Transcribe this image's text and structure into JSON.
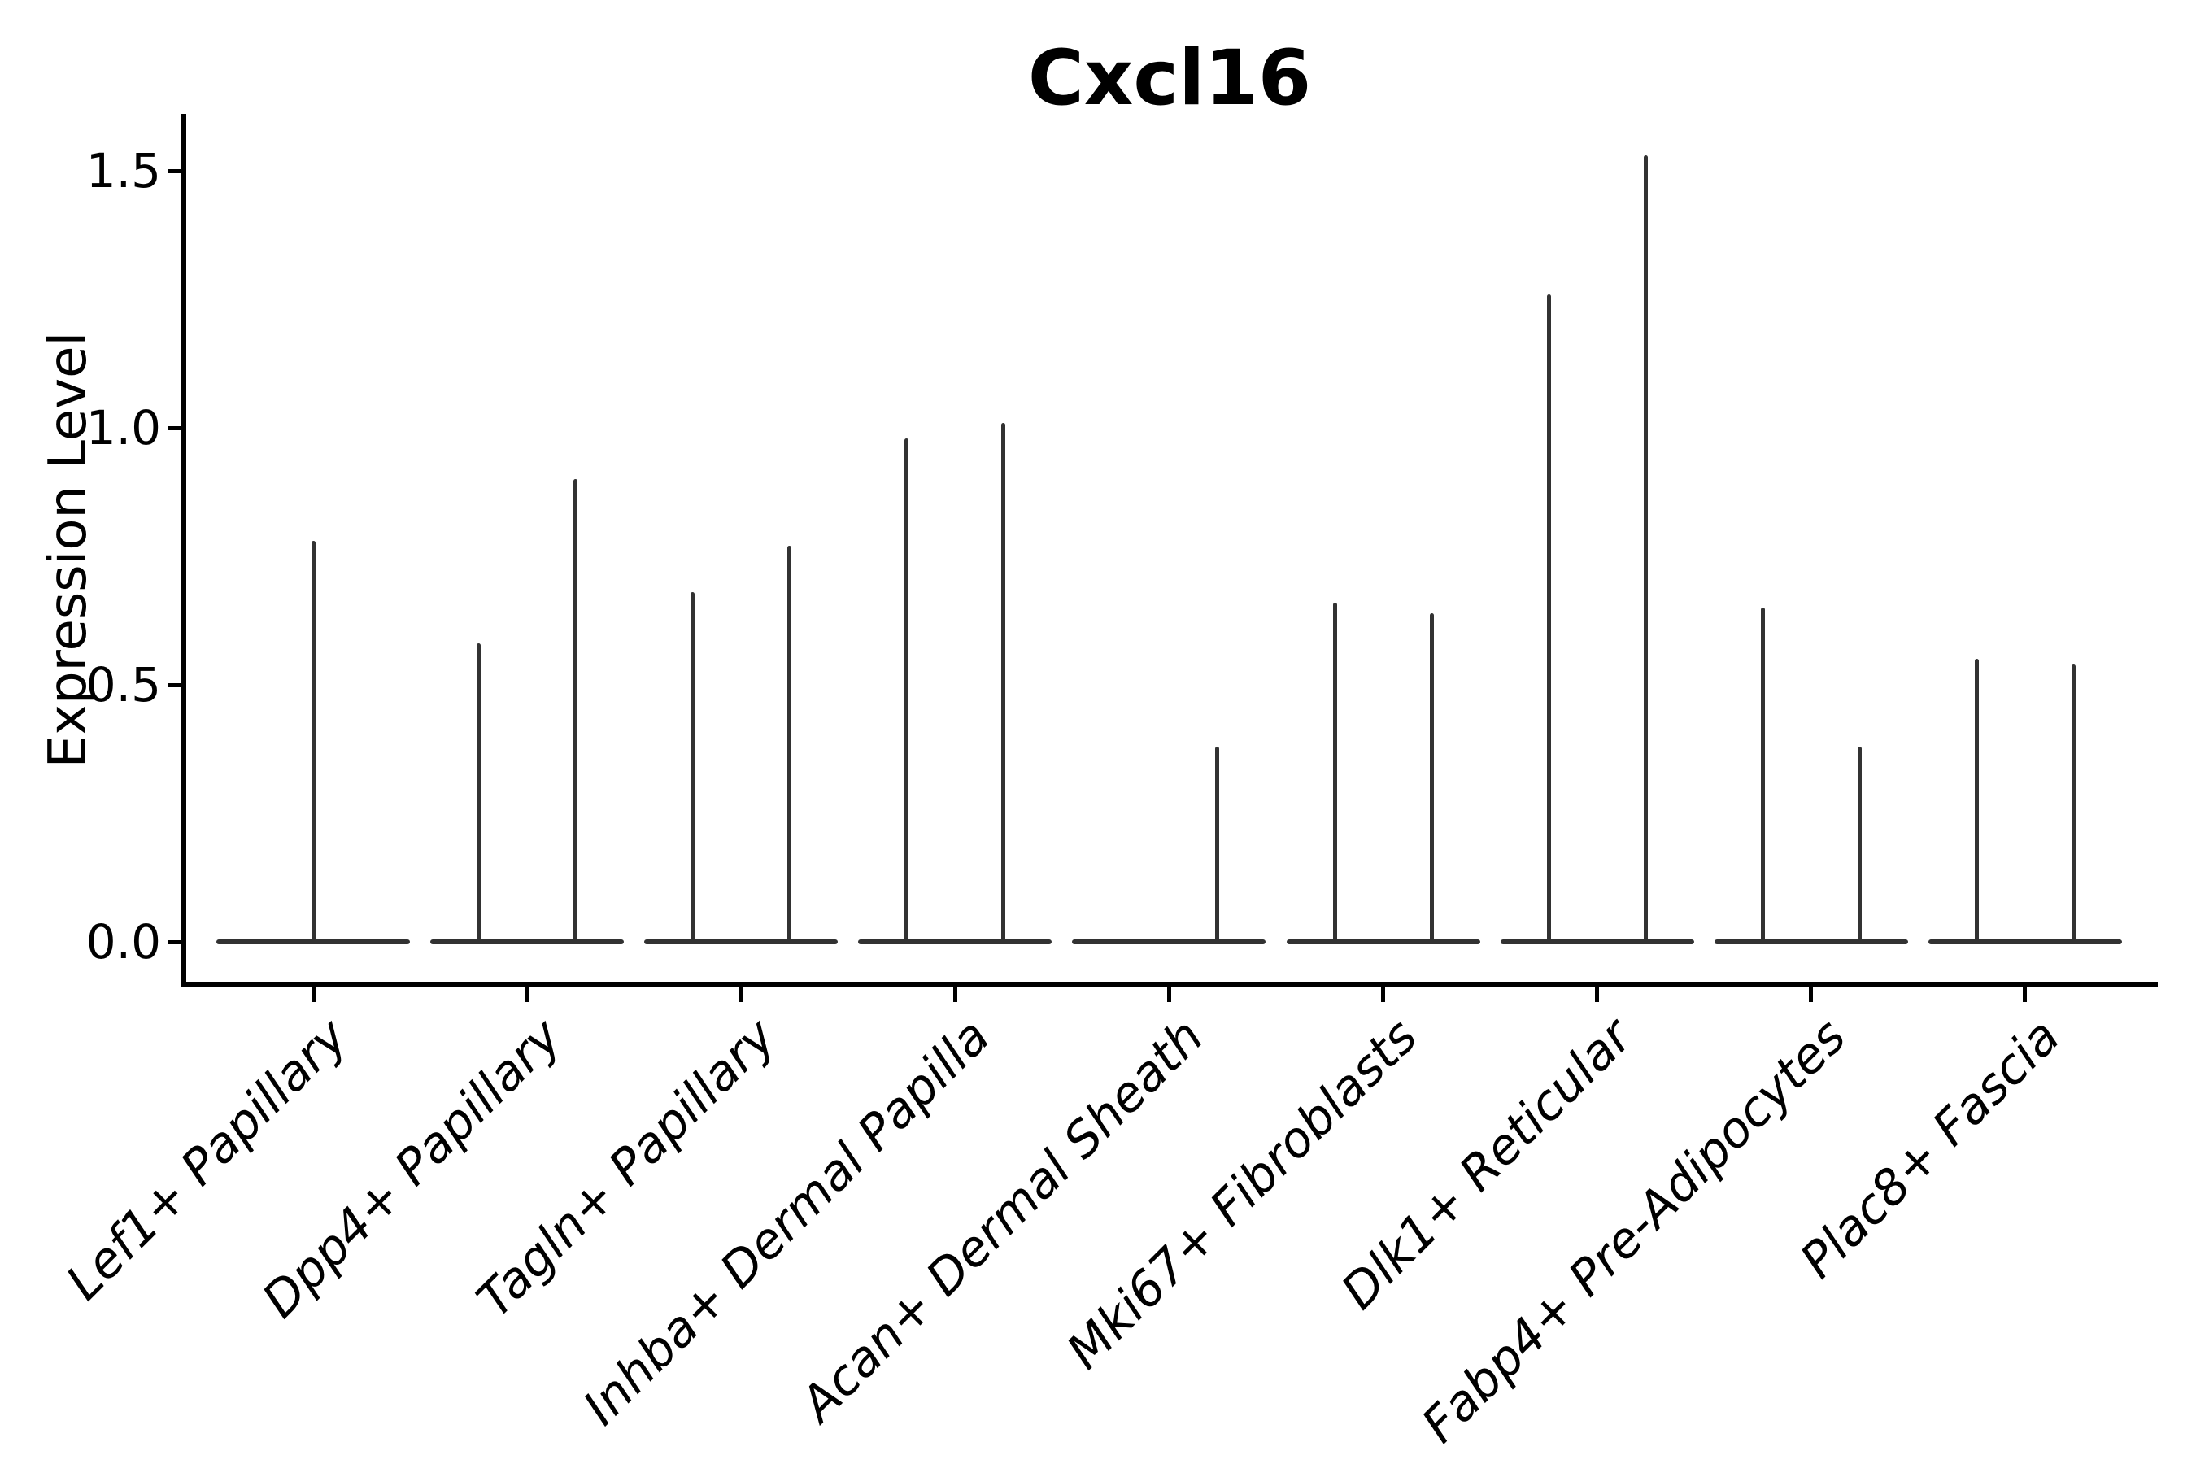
{
  "chart_data": {
    "type": "violin",
    "title": "Cxcl16",
    "xlabel": "",
    "ylabel": "Expression Level",
    "ytick_labels": [
      "0.0",
      "0.5",
      "1.0",
      "1.5"
    ],
    "ytick_values": [
      0.0,
      0.5,
      1.0,
      1.5
    ],
    "ylim": [
      -0.08,
      1.62
    ],
    "grid": false,
    "legend": "none",
    "background": "#ffffff",
    "categories": [
      "Lef1+ Papillary",
      "Dpp4+ Papillary",
      "Tagln+ Papillary",
      "Inhba+ Dermal Papilla",
      "Acan+ Dermal Sheath",
      "Mki67+ Fibroblasts",
      "Dlk1+ Reticular",
      "Fabp4+ Pre-Adipocytes",
      "Plac8+ Fascia"
    ],
    "series": [
      {
        "category": "Lef1+ Papillary",
        "baseline": 0,
        "violins": [
          {
            "offset": "center",
            "max": 0.78
          }
        ]
      },
      {
        "category": "Dpp4+ Papillary",
        "baseline": 0,
        "violins": [
          {
            "offset": "left",
            "max": 0.58
          },
          {
            "offset": "right",
            "max": 0.9
          }
        ]
      },
      {
        "category": "Tagln+ Papillary",
        "baseline": 0,
        "violins": [
          {
            "offset": "left",
            "max": 0.68
          },
          {
            "offset": "right",
            "max": 0.77
          }
        ]
      },
      {
        "category": "Inhba+ Dermal Papilla",
        "baseline": 0,
        "violins": [
          {
            "offset": "left",
            "max": 0.98
          },
          {
            "offset": "right",
            "max": 1.01
          }
        ]
      },
      {
        "category": "Acan+ Dermal Sheath",
        "baseline": 0,
        "violins": [
          {
            "offset": "right",
            "max": 0.38
          }
        ]
      },
      {
        "category": "Mki67+ Fibroblasts",
        "baseline": 0,
        "violins": [
          {
            "offset": "left",
            "max": 0.66
          },
          {
            "offset": "right",
            "max": 0.64
          }
        ]
      },
      {
        "category": "Dlk1+ Reticular",
        "baseline": 0,
        "violins": [
          {
            "offset": "left",
            "max": 1.26
          },
          {
            "offset": "right",
            "max": 1.53
          }
        ]
      },
      {
        "category": "Fabp4+ Pre-Adipocytes",
        "baseline": 0,
        "violins": [
          {
            "offset": "left",
            "max": 0.65
          },
          {
            "offset": "right",
            "max": 0.38
          }
        ]
      },
      {
        "category": "Plac8+ Fascia",
        "baseline": 0,
        "violins": [
          {
            "offset": "left",
            "max": 0.55
          },
          {
            "offset": "right",
            "max": 0.54
          }
        ]
      }
    ],
    "colors": {
      "violin": "#323232",
      "axis": "#000000",
      "text": "#000000"
    }
  }
}
